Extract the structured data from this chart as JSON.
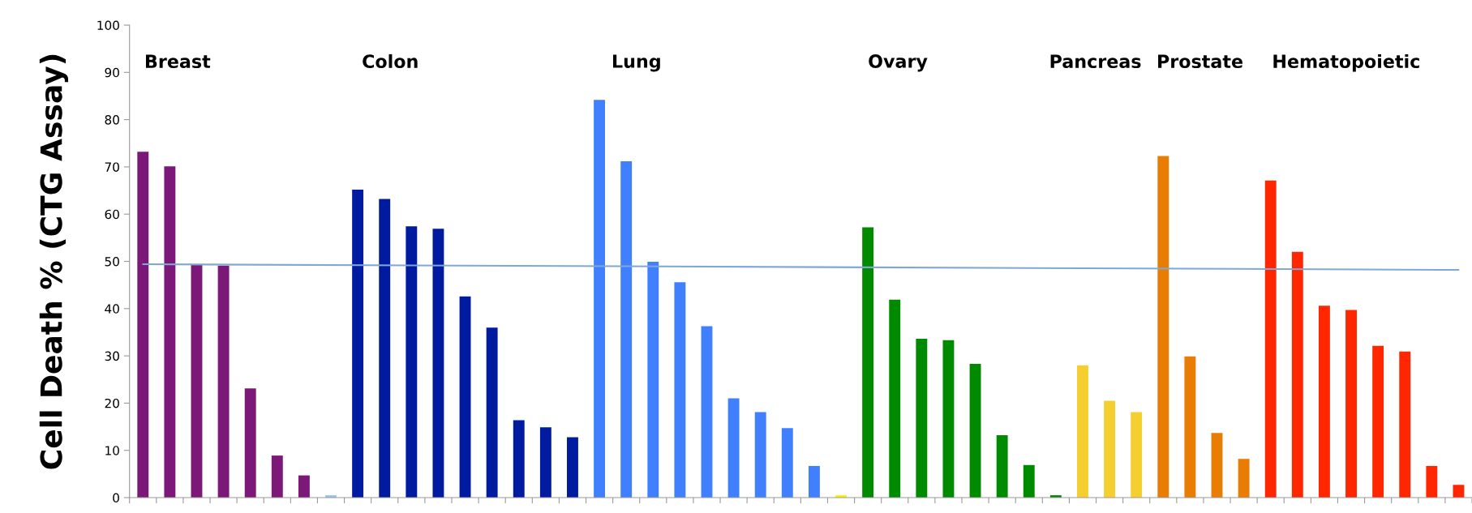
{
  "chart_data": {
    "type": "bar",
    "ylabel": "Cell Death % (CTG Assay)",
    "categories": [
      null,
      null,
      null,
      null,
      null,
      null,
      null,
      null,
      null,
      null,
      null,
      null,
      null,
      null,
      null,
      null,
      null,
      null,
      null,
      null,
      null,
      null,
      null,
      null,
      null,
      null,
      null,
      null,
      null,
      null,
      null,
      null,
      null,
      null,
      null,
      null,
      null,
      null,
      null,
      null,
      null,
      null,
      null,
      null,
      null,
      null,
      null,
      null,
      null,
      null
    ],
    "values": [
      73.2,
      70.1,
      49.3,
      49.1,
      23.1,
      8.9,
      4.7,
      0.5,
      65.2,
      63.2,
      57.4,
      56.9,
      42.6,
      36.0,
      16.4,
      14.9,
      12.8,
      84.2,
      71.2,
      49.9,
      45.6,
      36.3,
      21.0,
      18.1,
      14.7,
      6.7,
      0.5,
      57.2,
      41.9,
      33.6,
      33.3,
      28.3,
      13.2,
      6.9,
      0.5,
      28.0,
      20.5,
      18.1,
      72.3,
      29.9,
      13.7,
      8.2,
      67.1,
      52.0,
      40.6,
      39.7,
      32.1,
      30.9,
      6.7,
      2.7
    ],
    "colors": [
      "#7b1878",
      "#7b1878",
      "#7b1878",
      "#7b1878",
      "#7b1878",
      "#7b1878",
      "#7b1878",
      "#9cc3f0",
      "#001aa0",
      "#001aa0",
      "#001aa0",
      "#001aa0",
      "#001aa0",
      "#001aa0",
      "#001aa0",
      "#001aa0",
      "#001aa0",
      "#4080ff",
      "#4080ff",
      "#4080ff",
      "#4080ff",
      "#4080ff",
      "#4080ff",
      "#4080ff",
      "#4080ff",
      "#4080ff",
      "#ffee00",
      "#008a00",
      "#008a00",
      "#008a00",
      "#008a00",
      "#008a00",
      "#008a00",
      "#008a00",
      "#008a00",
      "#f5cf30",
      "#f5cf30",
      "#f5cf30",
      "#e97d04",
      "#e97d04",
      "#e97d04",
      "#e97d04",
      "#ff2600",
      "#ff2600",
      "#ff2600",
      "#ff2600",
      "#ff2600",
      "#ff2600",
      "#ff2600",
      "#ff2600"
    ],
    "series": [
      {
        "type": "line",
        "color": "#7fa7d8",
        "values": [
          49.4,
          null,
          null,
          null,
          null,
          null,
          null,
          null,
          null,
          null,
          null,
          null,
          null,
          null,
          null,
          null,
          null,
          null,
          null,
          null,
          null,
          null,
          null,
          null,
          null,
          null,
          null,
          null,
          null,
          null,
          null,
          null,
          null,
          null,
          null,
          null,
          null,
          null,
          null,
          null,
          null,
          null,
          null,
          null,
          null,
          null,
          null,
          null,
          null,
          48.2
        ]
      }
    ],
    "annotations": [
      "Breast",
      "Colon",
      "Lung",
      "Ovary",
      "Pancreas",
      "Prostate",
      "Hematopoietic"
    ],
    "ylim": [
      0,
      100
    ],
    "yticks": [
      0,
      10,
      20,
      30,
      40,
      50,
      60,
      70,
      80,
      90,
      100
    ],
    "grid": false,
    "legend": false
  }
}
